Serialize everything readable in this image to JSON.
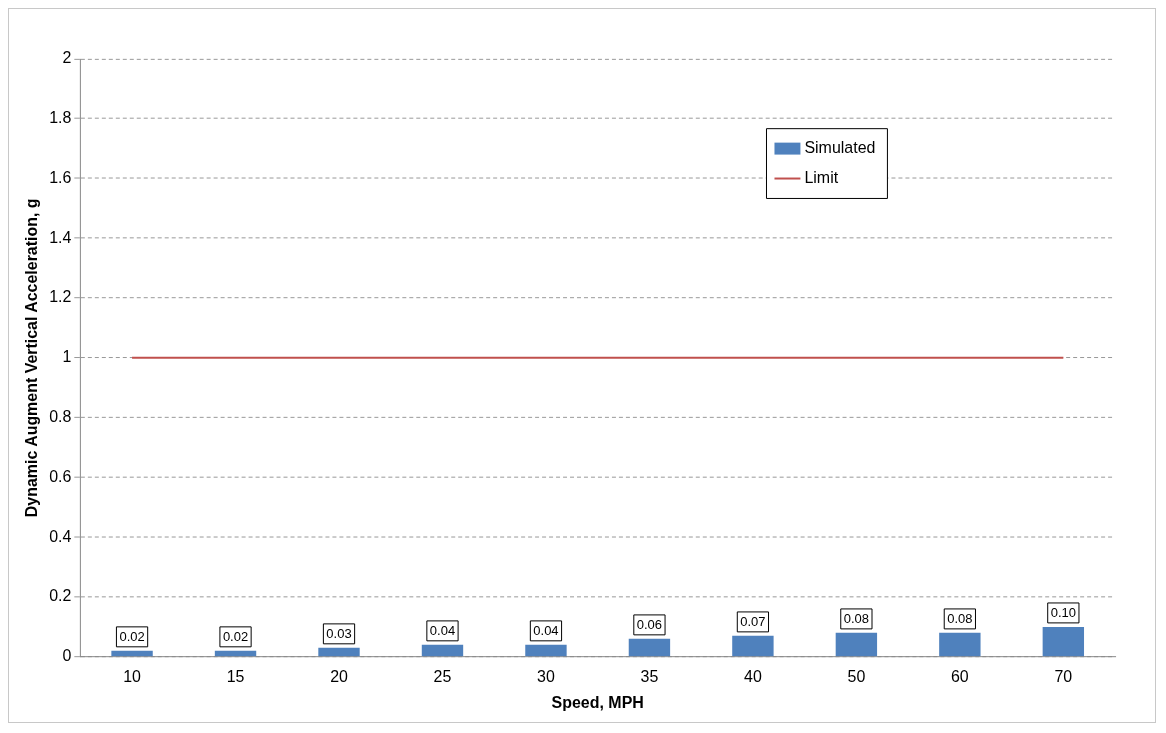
{
  "chart_data": {
    "type": "bar",
    "xlabel": "Speed, MPH",
    "ylabel": "Dynamic Augment Vertical Acceleration, g",
    "categories": [
      "10",
      "15",
      "20",
      "25",
      "30",
      "35",
      "40",
      "50",
      "60",
      "70"
    ],
    "series": [
      {
        "name": "Simulated",
        "color": "#4f81bd",
        "values": [
          0.02,
          0.02,
          0.03,
          0.04,
          0.04,
          0.06,
          0.07,
          0.08,
          0.08,
          0.1
        ],
        "value_labels": [
          "0.02",
          "0.02",
          "0.03",
          "0.04",
          "0.04",
          "0.06",
          "0.07",
          "0.08",
          "0.08",
          "0.10"
        ]
      },
      {
        "name": "Limit",
        "type": "line",
        "color": "#c0504d",
        "values": [
          1,
          1,
          1,
          1,
          1,
          1,
          1,
          1,
          1,
          1
        ]
      }
    ],
    "ylim": [
      0,
      2
    ],
    "yticks": [
      0,
      0.2,
      0.4,
      0.6,
      0.8,
      1,
      1.2,
      1.4,
      1.6,
      1.8,
      2
    ],
    "grid": "y",
    "legend": "top right",
    "line_style": "solid",
    "marker": "none"
  }
}
